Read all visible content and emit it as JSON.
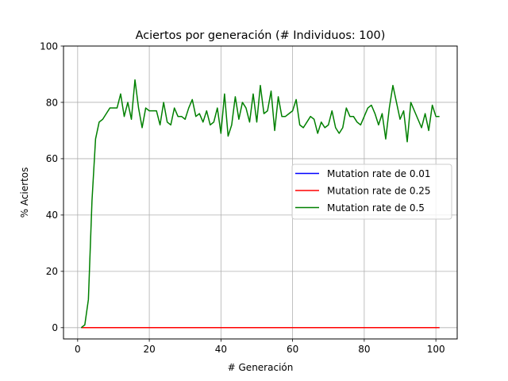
{
  "chart_data": {
    "type": "line",
    "title": "Aciertos por generación (# Individuos: 100)",
    "xlabel": "# Generación",
    "ylabel": "% Aciertos",
    "xlim": [
      -3.95,
      105.95
    ],
    "ylim": [
      -4,
      100
    ],
    "xticks": [
      0,
      20,
      40,
      60,
      80,
      100
    ],
    "yticks": [
      0,
      20,
      40,
      60,
      80,
      100
    ],
    "xtick_labels": [
      "0",
      "20",
      "40",
      "60",
      "80",
      "100"
    ],
    "ytick_labels": [
      "0",
      "20",
      "40",
      "60",
      "80",
      "100"
    ],
    "grid": true,
    "legend_position": "center-right",
    "series": [
      {
        "name": "Mutation rate de 0.01",
        "color": "#0000ff",
        "x_start": 1,
        "values": [
          0,
          0,
          0,
          0,
          0,
          0,
          0,
          0,
          0,
          0,
          0,
          0,
          0,
          0,
          0,
          0,
          0,
          0,
          0,
          0,
          0,
          0,
          0,
          0,
          0,
          0,
          0,
          0,
          0,
          0,
          0,
          0,
          0,
          0,
          0,
          0,
          0,
          0,
          0,
          0,
          0,
          0,
          0,
          0,
          0,
          0,
          0,
          0,
          0,
          0,
          0,
          0,
          0,
          0,
          0,
          0,
          0,
          0,
          0,
          0,
          0,
          0,
          0,
          0,
          0,
          0,
          0,
          0,
          0,
          0,
          0,
          0,
          0,
          0,
          0,
          0,
          0,
          0,
          0,
          0,
          0,
          0,
          0,
          0,
          0,
          0,
          0,
          0,
          0,
          0,
          0,
          0,
          0,
          0,
          0,
          0,
          0,
          0,
          0,
          0,
          0
        ]
      },
      {
        "name": "Mutation rate de 0.25",
        "color": "#ff0000",
        "x_start": 1,
        "values": [
          0,
          0,
          0,
          0,
          0,
          0,
          0,
          0,
          0,
          0,
          0,
          0,
          0,
          0,
          0,
          0,
          0,
          0,
          0,
          0,
          0,
          0,
          0,
          0,
          0,
          0,
          0,
          0,
          0,
          0,
          0,
          0,
          0,
          0,
          0,
          0,
          0,
          0,
          0,
          0,
          0,
          0,
          0,
          0,
          0,
          0,
          0,
          0,
          0,
          0,
          0,
          0,
          0,
          0,
          0,
          0,
          0,
          0,
          0,
          0,
          0,
          0,
          0,
          0,
          0,
          0,
          0,
          0,
          0,
          0,
          0,
          0,
          0,
          0,
          0,
          0,
          0,
          0,
          0,
          0,
          0,
          0,
          0,
          0,
          0,
          0,
          0,
          0,
          0,
          0,
          0,
          0,
          0,
          0,
          0,
          0,
          0,
          0,
          0,
          0,
          0
        ]
      },
      {
        "name": "Mutation rate de 0.5",
        "color": "#008000",
        "x_start": 1,
        "values": [
          0,
          1,
          10,
          45,
          67,
          73,
          74,
          76,
          78,
          78,
          78,
          83,
          75,
          80,
          74,
          88,
          78,
          71,
          78,
          77,
          77,
          77,
          72,
          80,
          73,
          72,
          78,
          75,
          75,
          74,
          78,
          81,
          75,
          76,
          73,
          77,
          72,
          73,
          78,
          69,
          83,
          68,
          72,
          82,
          74,
          80,
          78,
          73,
          83,
          73,
          86,
          76,
          77,
          84,
          70,
          82,
          75,
          75,
          76,
          77,
          81,
          72,
          71,
          73,
          75,
          74,
          69,
          73,
          71,
          72,
          77,
          71,
          69,
          71,
          78,
          75,
          75,
          73,
          72,
          75,
          78,
          79,
          76,
          72,
          76,
          67,
          78,
          86,
          80,
          74,
          77,
          66,
          80,
          77,
          74,
          71,
          76,
          70,
          79,
          75,
          75
        ]
      }
    ]
  }
}
